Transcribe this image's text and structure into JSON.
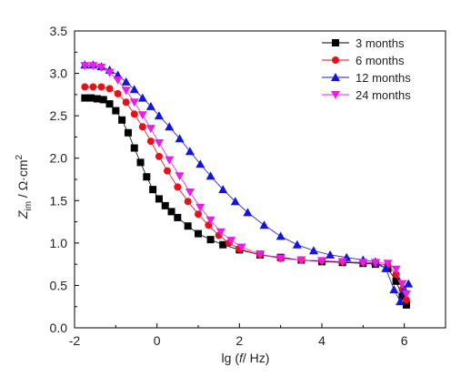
{
  "chart_data": {
    "type": "scatter",
    "xlabel": {
      "prefix": "lg (",
      "var": "f",
      "suffix": "/ Hz)"
    },
    "ylabel": {
      "main": "Z",
      "sub": "im",
      "unit": " / Ω·cm",
      "sup": "2"
    },
    "xlim": [
      -2,
      7
    ],
    "ylim": [
      0.0,
      3.5
    ],
    "x_ticks": [
      -2,
      0,
      2,
      4,
      6
    ],
    "y_ticks": [
      0.0,
      0.5,
      1.0,
      1.5,
      2.0,
      2.5,
      3.0,
      3.5
    ],
    "x_tick_labels": [
      "-2",
      "0",
      "2",
      "4",
      "6"
    ],
    "y_tick_labels": [
      "0.0",
      "0.5",
      "1.0",
      "1.5",
      "2.0",
      "2.5",
      "3.0",
      "3.5"
    ],
    "grid": false,
    "legend_position": "top-right",
    "series": [
      {
        "name": "3 months",
        "color": "#000000",
        "marker": "square",
        "x": [
          -1.75,
          -1.6,
          -1.45,
          -1.3,
          -1.15,
          -1.0,
          -0.85,
          -0.7,
          -0.55,
          -0.4,
          -0.25,
          -0.1,
          0.05,
          0.2,
          0.35,
          0.5,
          0.75,
          1.0,
          1.3,
          1.6,
          2.0,
          2.5,
          3.0,
          3.5,
          4.0,
          4.5,
          5.0,
          5.3,
          5.6,
          5.8,
          5.95,
          6.05
        ],
        "y": [
          2.71,
          2.71,
          2.7,
          2.69,
          2.64,
          2.56,
          2.45,
          2.3,
          2.12,
          1.95,
          1.78,
          1.63,
          1.52,
          1.44,
          1.37,
          1.3,
          1.2,
          1.11,
          1.04,
          0.98,
          0.92,
          0.86,
          0.83,
          0.8,
          0.78,
          0.77,
          0.76,
          0.75,
          0.7,
          0.55,
          0.37,
          0.27
        ]
      },
      {
        "name": "6 months",
        "color": "#e8101a",
        "marker": "circle",
        "x": [
          -1.75,
          -1.55,
          -1.35,
          -1.15,
          -0.95,
          -0.75,
          -0.55,
          -0.35,
          -0.15,
          0.05,
          0.25,
          0.5,
          0.75,
          1.0,
          1.25,
          1.5,
          1.75,
          2.0,
          2.5,
          3.0,
          3.5,
          4.0,
          4.5,
          5.0,
          5.3,
          5.6,
          5.8,
          5.95,
          6.05
        ],
        "y": [
          2.84,
          2.84,
          2.84,
          2.82,
          2.76,
          2.66,
          2.52,
          2.37,
          2.2,
          2.02,
          1.85,
          1.66,
          1.49,
          1.34,
          1.21,
          1.09,
          1.0,
          0.93,
          0.86,
          0.82,
          0.8,
          0.79,
          0.78,
          0.77,
          0.76,
          0.74,
          0.63,
          0.45,
          0.33
        ]
      },
      {
        "name": "12 months",
        "color": "#1414dc",
        "marker": "triangle-up",
        "x": [
          -1.75,
          -1.55,
          -1.35,
          -1.15,
          -0.95,
          -0.75,
          -0.55,
          -0.35,
          -0.15,
          0.05,
          0.3,
          0.55,
          0.8,
          1.05,
          1.3,
          1.6,
          1.9,
          2.2,
          2.6,
          3.0,
          3.4,
          3.8,
          4.2,
          4.6,
          5.0,
          5.3,
          5.55,
          5.75,
          5.9,
          6.0,
          6.1
        ],
        "y": [
          3.1,
          3.1,
          3.08,
          3.04,
          2.98,
          2.9,
          2.81,
          2.71,
          2.61,
          2.5,
          2.37,
          2.23,
          2.08,
          1.93,
          1.79,
          1.63,
          1.49,
          1.36,
          1.21,
          1.08,
          0.98,
          0.91,
          0.86,
          0.83,
          0.8,
          0.78,
          0.7,
          0.45,
          0.31,
          0.45,
          0.52
        ]
      },
      {
        "name": "24 months",
        "color": "#e81ee8",
        "marker": "triangle-down",
        "x": [
          -1.75,
          -1.55,
          -1.35,
          -1.15,
          -0.95,
          -0.75,
          -0.55,
          -0.35,
          -0.15,
          0.05,
          0.3,
          0.55,
          0.8,
          1.05,
          1.3,
          1.55,
          1.8,
          2.05,
          2.5,
          3.0,
          3.5,
          4.0,
          4.5,
          5.0,
          5.3,
          5.6,
          5.8,
          5.95,
          6.05
        ],
        "y": [
          3.09,
          3.09,
          3.07,
          3.01,
          2.92,
          2.8,
          2.66,
          2.51,
          2.35,
          2.18,
          1.98,
          1.79,
          1.6,
          1.42,
          1.27,
          1.13,
          1.03,
          0.95,
          0.87,
          0.82,
          0.8,
          0.79,
          0.78,
          0.77,
          0.77,
          0.76,
          0.69,
          0.52,
          0.4
        ]
      }
    ]
  }
}
